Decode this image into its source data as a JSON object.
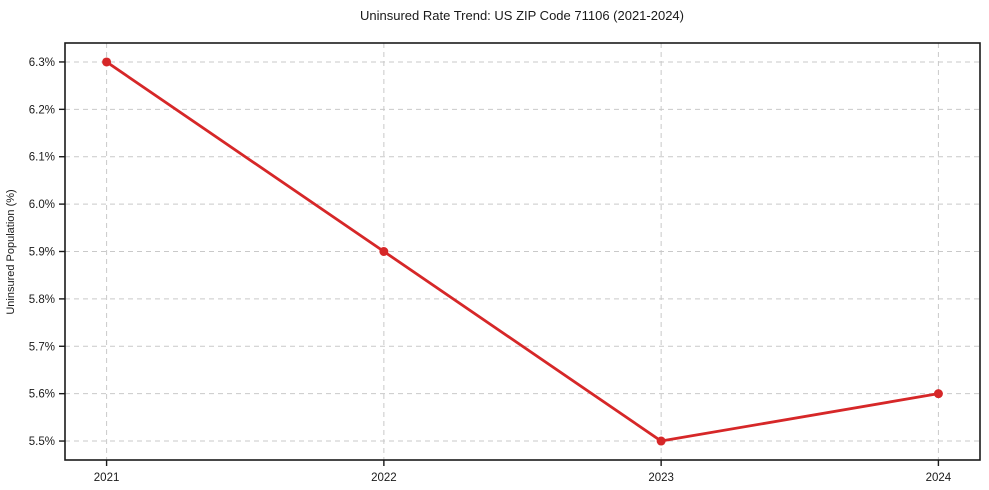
{
  "chart_data": {
    "type": "line",
    "title": "Uninsured Rate Trend: US ZIP Code 71106 (2021-2024)",
    "xlabel": "",
    "ylabel": "Uninsured Population (%)",
    "x": [
      2021,
      2022,
      2023,
      2024
    ],
    "values": [
      6.3,
      5.9,
      5.5,
      5.6
    ],
    "x_tick_labels": [
      "2021",
      "2022",
      "2023",
      "2024"
    ],
    "y_ticks": [
      5.5,
      5.6,
      5.7,
      5.8,
      5.9,
      6.0,
      6.1,
      6.2,
      6.3
    ],
    "y_tick_labels": [
      "5.5%",
      "5.6%",
      "5.7%",
      "5.8%",
      "5.9%",
      "6.0%",
      "6.1%",
      "6.2%",
      "6.3%"
    ],
    "xlim": [
      2020.85,
      2024.15
    ],
    "ylim": [
      5.46,
      6.34
    ],
    "grid": "both, dashed",
    "legend": "none",
    "marker": "circle",
    "line_color": "#d62728",
    "grid_color": "#c9c9c9",
    "spine_color": "#1a1a1a",
    "background_color": "#ffffff"
  }
}
